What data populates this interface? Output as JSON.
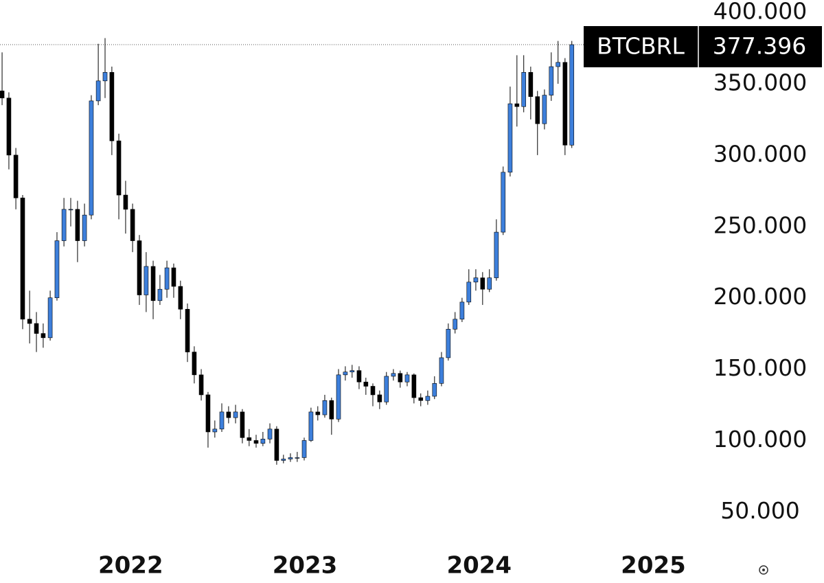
{
  "chart_data": {
    "type": "candlestick",
    "symbol": "BTCBRL",
    "last_price": {
      "value": 377396,
      "label": "377.396"
    },
    "up_color": "#3d7fdb",
    "down_color": "#000000",
    "grid": false,
    "xlim": [
      2021.25,
      2025.27
    ],
    "xticks": [
      2022,
      2023,
      2024,
      2025
    ],
    "ylim": [
      23700,
      408700
    ],
    "yticks": [
      {
        "value": 50000,
        "label": "50.000"
      },
      {
        "value": 100000,
        "label": "100.000"
      },
      {
        "value": 150000,
        "label": "150.000"
      },
      {
        "value": 200000,
        "label": "200.000"
      },
      {
        "value": 250000,
        "label": "250.000"
      },
      {
        "value": 300000,
        "label": "300.000"
      },
      {
        "value": 350000,
        "label": "350.000"
      },
      {
        "value": 400000,
        "label": "400.000"
      }
    ],
    "x": [
      2021.262,
      2021.301,
      2021.341,
      2021.38,
      2021.42,
      2021.459,
      2021.498,
      2021.538,
      2021.577,
      2021.617,
      2021.656,
      2021.695,
      2021.735,
      2021.774,
      2021.814,
      2021.853,
      2021.892,
      2021.932,
      2021.971,
      2022.011,
      2022.05,
      2022.089,
      2022.129,
      2022.168,
      2022.208,
      2022.247,
      2022.286,
      2022.326,
      2022.365,
      2022.405,
      2022.444,
      2022.483,
      2022.523,
      2022.562,
      2022.602,
      2022.641,
      2022.68,
      2022.72,
      2022.759,
      2022.799,
      2022.838,
      2022.877,
      2022.917,
      2022.956,
      2022.996,
      2023.035,
      2023.074,
      2023.114,
      2023.153,
      2023.193,
      2023.232,
      2023.271,
      2023.311,
      2023.35,
      2023.39,
      2023.429,
      2023.468,
      2023.508,
      2023.547,
      2023.587,
      2023.626,
      2023.665,
      2023.705,
      2023.744,
      2023.784,
      2023.823,
      2023.862,
      2023.902,
      2023.941,
      2023.981,
      2024.02,
      2024.059,
      2024.099,
      2024.138,
      2024.178,
      2024.217,
      2024.256,
      2024.296,
      2024.335,
      2024.375,
      2024.414,
      2024.453,
      2024.493,
      2024.532
    ],
    "open": [
      345000,
      340000,
      300000,
      270000,
      185000,
      182000,
      175000,
      172000,
      200000,
      240000,
      262000,
      262000,
      240000,
      258000,
      338000,
      352000,
      358000,
      310000,
      272000,
      262000,
      240000,
      202000,
      222000,
      198000,
      206000,
      221000,
      208000,
      192000,
      162000,
      146000,
      132000,
      106000,
      108000,
      120000,
      116000,
      120000,
      102000,
      100000,
      98000,
      101000,
      108000,
      86000,
      87000,
      88000,
      88000,
      100000,
      120000,
      118000,
      128000,
      115000,
      146000,
      148000,
      149000,
      141000,
      138000,
      132000,
      127000,
      145000,
      147000,
      141000,
      146000,
      130000,
      128000,
      131000,
      140000,
      158000,
      178000,
      185000,
      197000,
      211000,
      214000,
      206000,
      214000,
      246000,
      288000,
      336000,
      334000,
      358000,
      341000,
      322000,
      342000,
      362000,
      365000,
      307000
    ],
    "high": [
      372000,
      344000,
      305000,
      272000,
      205000,
      190000,
      182000,
      205000,
      246000,
      270000,
      270000,
      268000,
      266000,
      342000,
      378000,
      382000,
      362000,
      315000,
      282000,
      266000,
      244000,
      232000,
      226000,
      216000,
      226000,
      224000,
      212000,
      196000,
      166000,
      150000,
      134000,
      114000,
      126000,
      124000,
      125000,
      122000,
      108000,
      104000,
      106000,
      112000,
      110000,
      90000,
      91000,
      92000,
      102000,
      123000,
      124000,
      132000,
      130000,
      150000,
      152000,
      153000,
      152000,
      144000,
      140000,
      135000,
      148000,
      150000,
      149000,
      148000,
      147000,
      133000,
      135000,
      145000,
      162000,
      182000,
      190000,
      200000,
      220000,
      220000,
      218000,
      220000,
      255000,
      292000,
      348000,
      370000,
      370000,
      362000,
      345000,
      346000,
      372000,
      380000,
      368000,
      380000
    ],
    "low": [
      335000,
      290000,
      262000,
      178000,
      168000,
      162000,
      165000,
      170000,
      198000,
      236000,
      250000,
      225000,
      236000,
      255000,
      335000,
      340000,
      300000,
      255000,
      245000,
      232000,
      195000,
      190000,
      185000,
      195000,
      200000,
      200000,
      185000,
      155000,
      140000,
      128000,
      95000,
      102000,
      106000,
      112000,
      112000,
      98000,
      96000,
      95000,
      96000,
      98000,
      83000,
      84000,
      85000,
      85000,
      86000,
      99000,
      114000,
      116000,
      104000,
      113000,
      142000,
      144000,
      136000,
      132000,
      124000,
      122000,
      125000,
      142000,
      137000,
      138000,
      126000,
      124000,
      125000,
      129000,
      138000,
      156000,
      175000,
      183000,
      195000,
      205000,
      195000,
      204000,
      212000,
      244000,
      285000,
      320000,
      330000,
      325000,
      300000,
      318000,
      338000,
      350000,
      300000,
      305000
    ],
    "close": [
      340000,
      300000,
      270000,
      185000,
      182000,
      175000,
      172000,
      200000,
      240000,
      262000,
      262000,
      240000,
      258000,
      338000,
      352000,
      358000,
      310000,
      272000,
      262000,
      240000,
      202000,
      222000,
      198000,
      206000,
      221000,
      208000,
      192000,
      162000,
      146000,
      132000,
      106000,
      108000,
      120000,
      116000,
      120000,
      102000,
      100000,
      98000,
      101000,
      108000,
      86000,
      87000,
      88000,
      88000,
      100000,
      120000,
      118000,
      128000,
      115000,
      146000,
      148000,
      149000,
      141000,
      138000,
      132000,
      127000,
      145000,
      147000,
      141000,
      146000,
      130000,
      128000,
      131000,
      140000,
      158000,
      178000,
      185000,
      197000,
      211000,
      214000,
      206000,
      214000,
      246000,
      288000,
      336000,
      334000,
      358000,
      341000,
      322000,
      342000,
      362000,
      365000,
      307000,
      377396
    ]
  }
}
